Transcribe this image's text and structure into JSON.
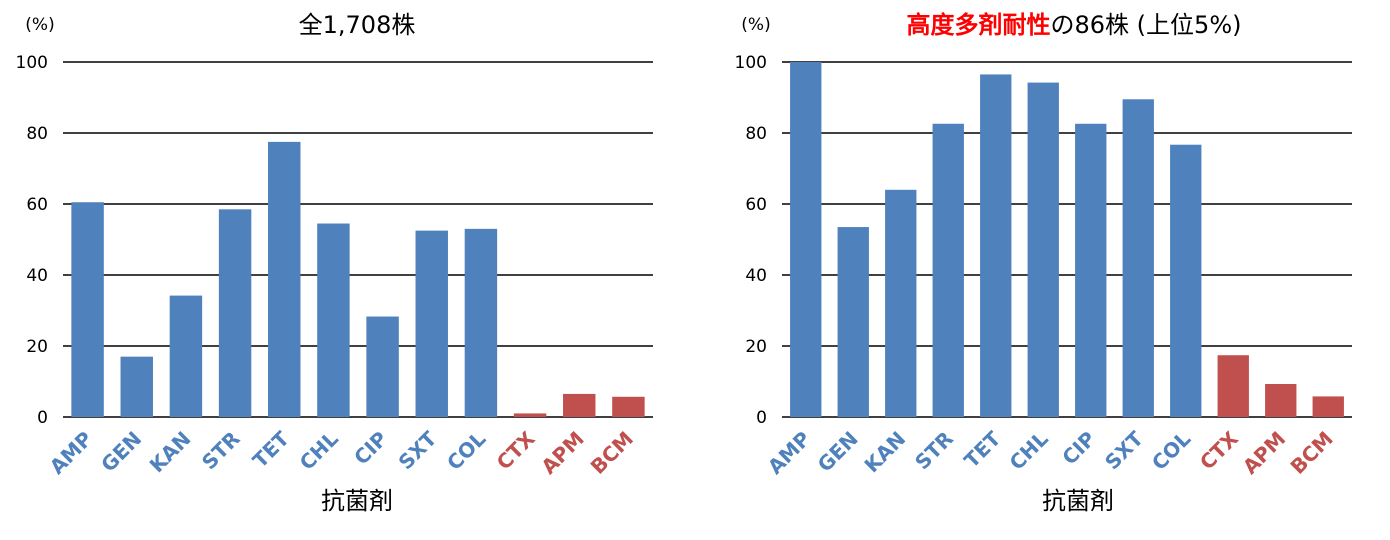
{
  "colors": {
    "blue": "#4f81bd",
    "red": "#c0504d",
    "title_highlight": "#ff0000"
  },
  "chart_data": [
    {
      "type": "bar",
      "title": "全1,708株",
      "ylabel": "(%)",
      "xlabel": "抗菌剤",
      "ylim": [
        0,
        100
      ],
      "yticks": [
        "0",
        "20",
        "40",
        "60",
        "80",
        "100"
      ],
      "grid": true,
      "categories": [
        "AMP",
        "GEN",
        "KAN",
        "STR",
        "TET",
        "CHL",
        "CIP",
        "SXT",
        "COL",
        "CTX",
        "APM",
        "BCM"
      ],
      "values": [
        60.5,
        17,
        34.2,
        58.5,
        77.5,
        54.5,
        28.3,
        52.5,
        53,
        1,
        6.5,
        5.7
      ],
      "bar_colors": [
        "blue",
        "blue",
        "blue",
        "blue",
        "blue",
        "blue",
        "blue",
        "blue",
        "blue",
        "red",
        "red",
        "red"
      ]
    },
    {
      "type": "bar",
      "title_parts": [
        {
          "text": "高度多剤耐性",
          "color": "red",
          "bold": true
        },
        {
          "text": "の86株 (上位5%)",
          "color": "black",
          "bold": false
        }
      ],
      "ylabel": "(%)",
      "xlabel": "抗菌剤",
      "ylim": [
        0,
        100
      ],
      "yticks": [
        "0",
        "20",
        "40",
        "60",
        "80",
        "100"
      ],
      "grid": true,
      "categories": [
        "AMP",
        "GEN",
        "KAN",
        "STR",
        "TET",
        "CHL",
        "CIP",
        "SXT",
        "COL",
        "CTX",
        "APM",
        "BCM"
      ],
      "values": [
        100,
        53.5,
        64,
        82.6,
        96.5,
        94.2,
        82.6,
        89.5,
        76.7,
        17.4,
        9.3,
        5.8
      ],
      "bar_colors": [
        "blue",
        "blue",
        "blue",
        "blue",
        "blue",
        "blue",
        "blue",
        "blue",
        "blue",
        "red",
        "red",
        "red"
      ]
    }
  ]
}
